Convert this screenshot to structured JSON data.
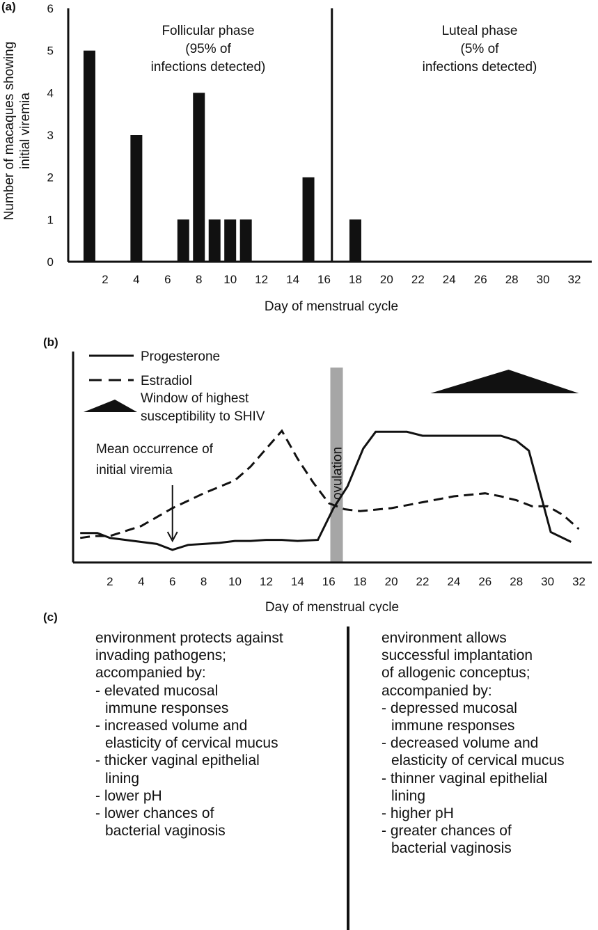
{
  "chart_data": [
    {
      "panel": "(a)",
      "type": "bar",
      "ylabel": [
        "Number of macaques showing",
        "initial viremia"
      ],
      "xlabel": "Day of menstrual cycle",
      "x_ticks": [
        2,
        4,
        6,
        8,
        10,
        12,
        14,
        16,
        18,
        20,
        22,
        24,
        26,
        28,
        30,
        32
      ],
      "y_ticks": [
        0,
        1,
        2,
        3,
        4,
        5,
        6
      ],
      "ylim": [
        0,
        6
      ],
      "xlim": [
        0,
        33
      ],
      "bars": [
        {
          "x": 1,
          "value": 5
        },
        {
          "x": 4,
          "value": 3
        },
        {
          "x": 7,
          "value": 1
        },
        {
          "x": 8,
          "value": 4
        },
        {
          "x": 9,
          "value": 1
        },
        {
          "x": 10,
          "value": 1
        },
        {
          "x": 11,
          "value": 1
        },
        {
          "x": 15,
          "value": 2
        },
        {
          "x": 18,
          "value": 1
        }
      ],
      "divider_x": 16.5,
      "annotations": {
        "follicular": [
          "Follicular phase",
          "(95% of",
          "infections detected)"
        ],
        "luteal": [
          "Luteal phase",
          "(5% of",
          "infections detected)"
        ]
      }
    },
    {
      "panel": "(b)",
      "type": "line",
      "xlabel": "Day of menstrual cycle",
      "x_ticks": [
        2,
        4,
        6,
        8,
        10,
        12,
        14,
        16,
        18,
        20,
        22,
        24,
        26,
        28,
        30,
        32
      ],
      "xlim": [
        0,
        33
      ],
      "ylim": [
        0,
        1
      ],
      "series": [
        {
          "name": "Progesterone",
          "style": "solid",
          "points": [
            [
              0.1,
              0.145
            ],
            [
              1.2,
              0.145
            ],
            [
              2,
              0.12
            ],
            [
              3,
              0.11
            ],
            [
              4,
              0.1
            ],
            [
              5,
              0.09
            ],
            [
              6,
              0.06
            ],
            [
              7,
              0.085
            ],
            [
              8,
              0.09
            ],
            [
              9,
              0.095
            ],
            [
              10,
              0.105
            ],
            [
              11,
              0.105
            ],
            [
              12,
              0.11
            ],
            [
              13,
              0.11
            ],
            [
              14,
              0.105
            ],
            [
              15.3,
              0.11
            ],
            [
              16.3,
              0.27
            ],
            [
              17.2,
              0.38
            ],
            [
              18.2,
              0.57
            ],
            [
              19,
              0.655
            ],
            [
              20,
              0.655
            ],
            [
              21,
              0.655
            ],
            [
              22,
              0.635
            ],
            [
              23,
              0.635
            ],
            [
              24,
              0.635
            ],
            [
              25,
              0.635
            ],
            [
              26,
              0.635
            ],
            [
              27,
              0.635
            ],
            [
              28,
              0.61
            ],
            [
              28.8,
              0.56
            ],
            [
              30.2,
              0.15
            ],
            [
              31.5,
              0.1
            ]
          ]
        },
        {
          "name": "Estradiol",
          "style": "dashed",
          "points": [
            [
              0.1,
              0.12
            ],
            [
              1,
              0.13
            ],
            [
              2,
              0.13
            ],
            [
              4,
              0.18
            ],
            [
              6,
              0.27
            ],
            [
              8,
              0.345
            ],
            [
              10,
              0.41
            ],
            [
              11,
              0.48
            ],
            [
              12,
              0.57
            ],
            [
              13,
              0.66
            ],
            [
              14,
              0.52
            ],
            [
              15,
              0.4
            ],
            [
              16,
              0.295
            ],
            [
              17,
              0.265
            ],
            [
              18,
              0.255
            ],
            [
              20,
              0.27
            ],
            [
              22,
              0.3
            ],
            [
              24,
              0.33
            ],
            [
              26,
              0.345
            ],
            [
              27,
              0.33
            ],
            [
              28,
              0.31
            ],
            [
              29,
              0.28
            ],
            [
              30,
              0.28
            ],
            [
              31,
              0.235
            ],
            [
              32,
              0.165
            ]
          ]
        }
      ],
      "window_of_highest_susceptibility": {
        "start_day": 22.5,
        "peak_day": 27.5,
        "end_day": 32
      },
      "ovulation_day": 16.5,
      "mean_initial_viremia_day": 6
    }
  ],
  "panel_b": {
    "label": "(b)",
    "legend": {
      "progesterone": "Progesterone",
      "estradiol": "Estradiol",
      "window_line1": "Window of highest",
      "window_line2": "susceptibility to SHIV"
    },
    "ovulation_label": "ovulation",
    "viremia_note": [
      "Mean occurrence of",
      "initial  viremia"
    ]
  },
  "panel_c": {
    "label": "(c)",
    "left": [
      {
        "text": "environment protects against",
        "indent": false
      },
      {
        "text": "invading pathogens;",
        "indent": false
      },
      {
        "text": "accompanied by:",
        "indent": false
      },
      {
        "text": "- elevated mucosal",
        "indent": false
      },
      {
        "text": "immune responses",
        "indent": true
      },
      {
        "text": "- increased volume and",
        "indent": false
      },
      {
        "text": "elasticity  of cervical mucus",
        "indent": true
      },
      {
        "text": "- thicker vaginal epithelial",
        "indent": false
      },
      {
        "text": "lining",
        "indent": true
      },
      {
        "text": "- lower pH",
        "indent": false
      },
      {
        "text": "- lower chances of",
        "indent": false
      },
      {
        "text": "bacterial vaginosis",
        "indent": true
      }
    ],
    "right": [
      {
        "text": "environment allows",
        "indent": false
      },
      {
        "text": "successful implantation",
        "indent": false
      },
      {
        "text": "of allogenic conceptus;",
        "indent": false
      },
      {
        "text": "accompanied by:",
        "indent": false
      },
      {
        "text": "- depressed mucosal",
        "indent": false
      },
      {
        "text": "immune responses",
        "indent": true
      },
      {
        "text": "- decreased volume and",
        "indent": false
      },
      {
        "text": "elasticity of cervical mucus",
        "indent": true
      },
      {
        "text": "- thinner vaginal epithelial",
        "indent": false
      },
      {
        "text": "lining",
        "indent": true
      },
      {
        "text": "- higher pH",
        "indent": false
      },
      {
        "text": "- greater chances of",
        "indent": false
      },
      {
        "text": "bacterial vaginosis",
        "indent": true
      }
    ]
  },
  "colors": {
    "ink": "#111111",
    "ovulation_band": "#a6a6a6",
    "background": "#ffffff"
  }
}
